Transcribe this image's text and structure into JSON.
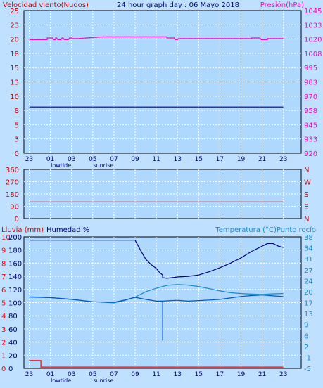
{
  "colors": {
    "background": "#c0e0ff",
    "plot_bg": "#afd8ff",
    "grid": "#ffffff",
    "wind": "#cc0000",
    "pressure": "#ff00cc",
    "humidity": "#000080",
    "temperature": "#1a8ad4",
    "dew": "#0055cc",
    "rain": "#ff0000",
    "text_dark": "#000080"
  },
  "chart_data": [
    {
      "type": "line",
      "title": "24 hour graph day : 06 Mayo 2018",
      "left_axis": {
        "label": "Velocidad viento(Nudos)",
        "range": [
          0,
          25
        ],
        "ticks": [
          "0",
          "3",
          "5",
          "8",
          "10",
          "13",
          "15",
          "18",
          "20",
          "23",
          "25"
        ]
      },
      "right_axis": {
        "label": "Presión(hPa)",
        "range": [
          920,
          1045
        ],
        "ticks": [
          "920",
          "933",
          "945",
          "958",
          "970",
          "983",
          "995",
          "1008",
          "1020",
          "1033",
          "1045"
        ]
      },
      "x_ticks": [
        "23",
        "01",
        "03",
        "05",
        "07",
        "09",
        "11",
        "13",
        "15",
        "17",
        "19",
        "21",
        "23"
      ],
      "x_sublabels": [
        {
          "text": "lowtide",
          "at": "02"
        },
        {
          "text": "sunrise",
          "at": "06"
        }
      ],
      "series": [
        {
          "axis": "left",
          "color": "#000080",
          "x": [
            0,
            24
          ],
          "y": [
            8.1,
            8.1
          ]
        },
        {
          "axis": "right",
          "color": "#ff00cc",
          "x": [
            0,
            1.7,
            1.7,
            2.2,
            2.3,
            2.5,
            2.5,
            2.6,
            2.7,
            3.0,
            3.1,
            3.2,
            3.3,
            3.7,
            3.8,
            4.0,
            4.1,
            4.6,
            7.0,
            7.0,
            13.0,
            13.0,
            13.7,
            13.8,
            14.0,
            14.1,
            21.0,
            21.0,
            21.8,
            21.9,
            22.5,
            22.5,
            24.0
          ],
          "y": [
            1019.5,
            1019.5,
            1021,
            1021,
            1019.5,
            1019.5,
            1021,
            1021,
            1019.5,
            1019.5,
            1021,
            1021,
            1019.5,
            1019.5,
            1021,
            1021,
            1020.5,
            1020.5,
            1022,
            1022,
            1022,
            1021,
            1021,
            1019.5,
            1019.5,
            1020.5,
            1020.5,
            1021,
            1021,
            1019.5,
            1019.5,
            1020.5,
            1020.5
          ]
        }
      ]
    },
    {
      "type": "line",
      "left_axis": {
        "range": [
          0,
          360
        ],
        "ticks": [
          "0",
          "90",
          "180",
          "270",
          "360"
        ]
      },
      "right_axis": {
        "ticks": [
          "N",
          "E",
          "S",
          "W",
          "N"
        ]
      },
      "series": [
        {
          "color": "#ff0000",
          "x": [
            0,
            24
          ],
          "y": [
            122,
            122
          ]
        }
      ]
    },
    {
      "type": "line",
      "header_left": [
        "Lluvia (mm)",
        "Humedad %"
      ],
      "header_right": "Temperatura (°C)Punto rocío",
      "axis_rain": {
        "range": [
          0,
          10
        ],
        "ticks": [
          "0",
          "1",
          "2",
          "3",
          "4",
          "5",
          "6",
          "7",
          "8",
          "9",
          "10"
        ]
      },
      "axis_humidity": {
        "range": [
          0,
          200
        ],
        "ticks": [
          "0",
          "20",
          "40",
          "60",
          "80",
          "100",
          "120",
          "140",
          "160",
          "180",
          "200"
        ]
      },
      "axis_temp": {
        "range": [
          -5,
          40
        ],
        "ticks": [
          "-5",
          "-1",
          "2",
          "6",
          "9",
          "13",
          "17",
          "20",
          "24",
          "27",
          "31",
          "34",
          "38"
        ]
      },
      "series": [
        {
          "name": "Humedad",
          "axis": "humidity",
          "color": "#000080",
          "x": [
            0,
            10,
            10.5,
            11,
            11.5,
            12,
            12.3,
            12.6,
            12.6,
            13.0,
            13.5,
            14.0,
            15.0,
            16.0,
            17.0,
            18.0,
            19.0,
            20.0,
            21.0,
            22.0,
            22.5,
            23.0,
            23.5,
            24.0
          ],
          "y": [
            195,
            195,
            180,
            166,
            158,
            152,
            146,
            142,
            138,
            137,
            138,
            139,
            140,
            142,
            147,
            153,
            160,
            168,
            178,
            186,
            190,
            190,
            186,
            184
          ]
        },
        {
          "name": "Temperatura",
          "axis": "temp",
          "color": "#1a8ad4",
          "x": [
            0,
            2,
            4,
            6,
            8,
            9,
            10,
            11,
            12,
            13,
            14,
            15,
            16,
            17,
            18,
            19,
            20,
            21,
            22,
            23,
            24
          ],
          "y": [
            19.5,
            19.2,
            18.6,
            17.8,
            17.4,
            18.2,
            19.4,
            21.2,
            22.4,
            23.4,
            23.7,
            23.5,
            23.0,
            22.3,
            21.5,
            20.9,
            20.6,
            20.4,
            20.3,
            20.5,
            20.6
          ]
        },
        {
          "name": "Punto rocío",
          "axis": "temp",
          "color": "#0055cc",
          "x": [
            0,
            2,
            4,
            6,
            8,
            9,
            10,
            11,
            12,
            12.6,
            12.6,
            12.6,
            13,
            14,
            15,
            16,
            17,
            18,
            19,
            20,
            21,
            22,
            23,
            24
          ],
          "y": [
            19.4,
            19.2,
            18.6,
            17.8,
            17.6,
            18.4,
            19.3,
            18.6,
            18.0,
            18.0,
            4.5,
            18.0,
            18.1,
            18.3,
            18.0,
            18.2,
            18.4,
            18.6,
            19.1,
            19.6,
            19.9,
            20.1,
            19.8,
            19.6
          ]
        },
        {
          "name": "Lluvia",
          "axis": "rain",
          "color": "#ff0000",
          "x": [
            0,
            1.1,
            1.1,
            24
          ],
          "y": [
            0.6,
            0.6,
            0.1,
            0.1
          ]
        }
      ]
    }
  ]
}
